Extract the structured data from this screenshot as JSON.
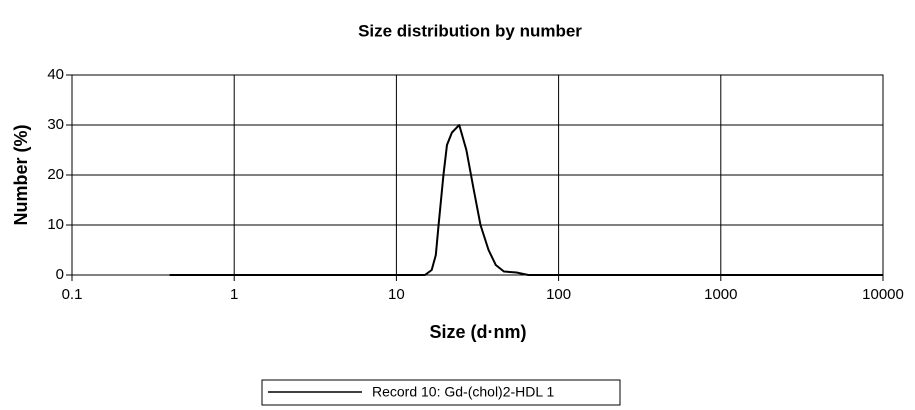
{
  "chart_data": {
    "type": "line",
    "title": "Size distribution by number",
    "x_label": "Size (d·nm)",
    "y_label": "Number (%)",
    "log_x": true,
    "grid": true,
    "legend_position": "bottom",
    "xlim": [
      0.1,
      10000
    ],
    "xticks": [
      0.1,
      1,
      10,
      100,
      1000,
      10000
    ],
    "ylim": [
      0,
      40
    ],
    "yticks": [
      0,
      10,
      20,
      30,
      40
    ],
    "series": [
      {
        "name": "Record 10: Gd-(chol)2-HDL 1",
        "color": "#000000",
        "x": [
          0.4,
          10,
          15,
          16.5,
          17.5,
          18.2,
          19.5,
          20.5,
          22,
          24.4,
          27,
          30,
          33,
          37,
          41,
          46,
          55,
          65,
          100,
          10000
        ],
        "values": [
          0,
          0,
          0,
          1,
          4,
          10,
          20,
          26,
          28.5,
          30,
          25,
          17,
          10,
          5,
          2,
          0.7,
          0.5,
          0,
          0,
          0
        ]
      }
    ]
  }
}
